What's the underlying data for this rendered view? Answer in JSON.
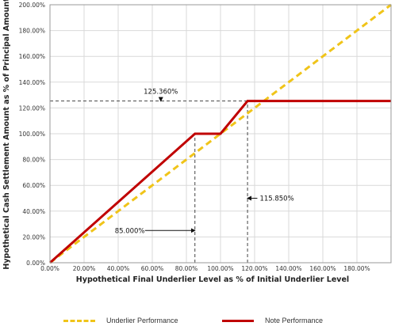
{
  "chart_data": {
    "type": "line",
    "xlabel": "Hypothetical Final Underlier Level as % of Initial Underlier Level",
    "ylabel": "Hypothetical Cash Settlement Amount as % of Principal Amount",
    "xlim": [
      0,
      200
    ],
    "ylim": [
      0,
      200
    ],
    "x_tick_labels": [
      "0.00%",
      "20.00%",
      "40.00%",
      "60.00%",
      "80.00%",
      "100.00%",
      "120.00%",
      "140.00%",
      "160.00%",
      "180.00%"
    ],
    "x_ticks": [
      0,
      20,
      40,
      60,
      80,
      100,
      120,
      140,
      160,
      180
    ],
    "y_tick_labels": [
      "0.00%",
      "20.00%",
      "40.00%",
      "60.00%",
      "80.00%",
      "100.00%",
      "120.00%",
      "140.00%",
      "160.00%",
      "180.00%",
      "200.00%"
    ],
    "y_ticks": [
      0,
      20,
      40,
      60,
      80,
      100,
      120,
      140,
      160,
      180,
      200
    ],
    "grid": true,
    "legend_placement": "bottom",
    "series": [
      {
        "name": "Underlier Performance",
        "style": "dashed",
        "color": "#f0c419",
        "x": [
          0,
          200
        ],
        "y": [
          0,
          200
        ]
      },
      {
        "name": "Note Performance",
        "style": "solid",
        "color": "#c00000",
        "x": [
          0,
          85,
          100,
          115.85,
          200
        ],
        "y": [
          0,
          100,
          100,
          125.36,
          125.36
        ]
      }
    ],
    "annotations": [
      {
        "text": "125.360%",
        "x": 65,
        "y": 131,
        "arrow_to": {
          "x": 65,
          "y": 125.36
        }
      },
      {
        "text": "85.000%",
        "x": 52,
        "y": 25,
        "arrow_to": {
          "x": 85,
          "y": 25
        }
      },
      {
        "text": "115.850%",
        "x": 123,
        "y": 50,
        "arrow_to": {
          "x": 115.85,
          "y": 50
        }
      }
    ],
    "reference_lines": [
      {
        "orientation": "horizontal",
        "value": 125.36,
        "from": 0,
        "to": 115.85
      },
      {
        "orientation": "vertical",
        "value": 85,
        "from": 0,
        "to": 100
      },
      {
        "orientation": "vertical",
        "value": 115.85,
        "from": 0,
        "to": 125.36
      }
    ]
  }
}
